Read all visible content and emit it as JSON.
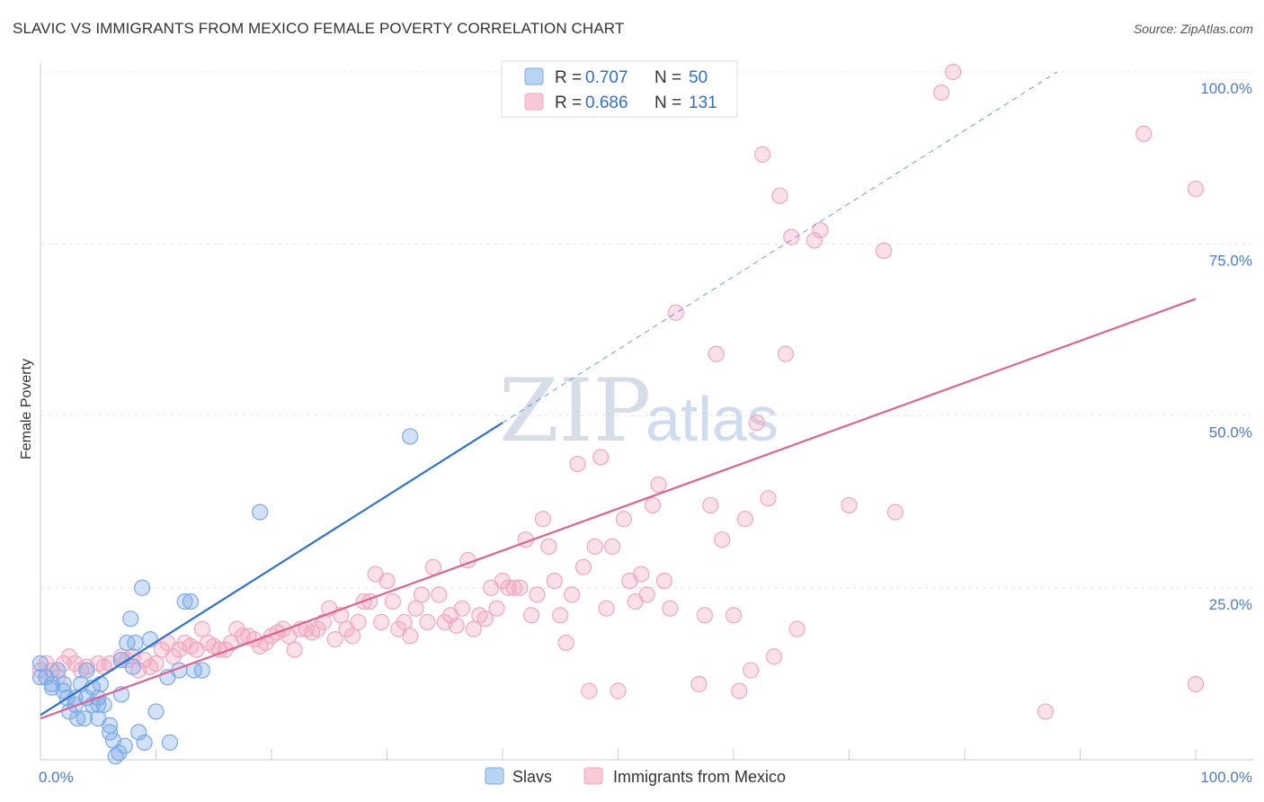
{
  "title": "SLAVIC VS IMMIGRANTS FROM MEXICO FEMALE POVERTY CORRELATION CHART",
  "source": "Source: ZipAtlas.com",
  "watermark": {
    "zip": "ZIP",
    "atlas": "atlas"
  },
  "legend": {
    "rows": [
      {
        "r_label": "R = ",
        "r_value": "0.707",
        "n_label": "N = ",
        "n_value": "50"
      },
      {
        "r_label": "R = ",
        "r_value": "0.686",
        "n_label": "N = ",
        "n_value": "131"
      }
    ]
  },
  "chart_data": {
    "type": "scatter",
    "title": "SLAVIC VS IMMIGRANTS FROM MEXICO FEMALE POVERTY CORRELATION CHART",
    "ylabel": "Female Poverty",
    "xlabel": "",
    "xlim": [
      0,
      100
    ],
    "ylim": [
      0,
      100
    ],
    "x_tick_labels": [
      {
        "value": 0,
        "label": "0.0%"
      },
      {
        "value": 100,
        "label": "100.0%"
      }
    ],
    "y_tick_labels": [
      {
        "value": 25,
        "label": "25.0%"
      },
      {
        "value": 50,
        "label": "50.0%"
      },
      {
        "value": 75,
        "label": "75.0%"
      },
      {
        "value": 100,
        "label": "100.0%"
      }
    ],
    "grid": true,
    "colors": {
      "slavs": "#7aaae8",
      "mexico": "#f2a7bf",
      "slavs_line": "#2f73d0",
      "mexico_line": "#e0628e"
    },
    "series": [
      {
        "name": "Slavs",
        "r": 0.707,
        "n": 50,
        "trend": {
          "x0": 0,
          "y0": 6.5,
          "x1": 40,
          "y1": 49,
          "dash_to_x": 88
        },
        "points": [
          [
            0,
            14
          ],
          [
            0,
            12
          ],
          [
            0.5,
            12
          ],
          [
            1,
            11
          ],
          [
            1,
            10.5
          ],
          [
            1.5,
            13
          ],
          [
            2,
            11
          ],
          [
            2,
            10
          ],
          [
            2.3,
            9
          ],
          [
            2.5,
            7
          ],
          [
            3,
            9
          ],
          [
            3,
            8
          ],
          [
            3.2,
            6
          ],
          [
            3.5,
            11
          ],
          [
            3.8,
            6
          ],
          [
            4,
            13
          ],
          [
            4,
            9
          ],
          [
            4.5,
            10.5
          ],
          [
            4.5,
            8
          ],
          [
            5,
            8
          ],
          [
            5,
            9
          ],
          [
            5,
            6
          ],
          [
            5.2,
            11
          ],
          [
            5.5,
            8
          ],
          [
            6,
            4
          ],
          [
            6,
            5
          ],
          [
            6.3,
            2.8
          ],
          [
            6.5,
            0.5
          ],
          [
            6.8,
            1
          ],
          [
            7,
            9.5
          ],
          [
            7,
            14.5
          ],
          [
            7.3,
            2
          ],
          [
            7.5,
            17
          ],
          [
            7.8,
            20.5
          ],
          [
            8,
            13.5
          ],
          [
            8.2,
            17
          ],
          [
            8.5,
            4
          ],
          [
            8.8,
            25
          ],
          [
            9,
            2.5
          ],
          [
            9.5,
            17.5
          ],
          [
            10,
            7
          ],
          [
            11,
            12
          ],
          [
            11.2,
            2.5
          ],
          [
            12,
            13
          ],
          [
            12.5,
            23
          ],
          [
            13,
            23
          ],
          [
            13.3,
            13
          ],
          [
            14,
            13
          ],
          [
            19,
            36
          ],
          [
            32,
            47
          ]
        ]
      },
      {
        "name": "Immigrants from Mexico",
        "r": 0.686,
        "n": 131,
        "trend": {
          "x0": 0,
          "y0": 6,
          "x1": 100,
          "y1": 67
        },
        "points": [
          [
            0,
            13
          ],
          [
            0.5,
            14
          ],
          [
            1,
            13
          ],
          [
            1.5,
            12
          ],
          [
            2,
            14
          ],
          [
            2.5,
            15
          ],
          [
            3,
            14
          ],
          [
            3.5,
            13
          ],
          [
            4,
            13.5
          ],
          [
            5,
            14
          ],
          [
            5.5,
            13.5
          ],
          [
            6,
            14
          ],
          [
            7,
            15
          ],
          [
            7.5,
            14.5
          ],
          [
            8,
            15
          ],
          [
            8.5,
            13
          ],
          [
            9,
            14.5
          ],
          [
            9.5,
            13.5
          ],
          [
            10,
            14
          ],
          [
            10.5,
            16
          ],
          [
            11,
            17
          ],
          [
            11.5,
            15
          ],
          [
            12,
            16
          ],
          [
            12.5,
            17
          ],
          [
            13,
            16.5
          ],
          [
            13.5,
            16
          ],
          [
            14,
            19
          ],
          [
            14.5,
            17
          ],
          [
            15,
            16.5
          ],
          [
            15.5,
            16
          ],
          [
            16,
            16
          ],
          [
            16.5,
            17
          ],
          [
            17,
            19
          ],
          [
            17.5,
            18
          ],
          [
            18,
            18
          ],
          [
            18.5,
            17.5
          ],
          [
            19,
            16.5
          ],
          [
            19.5,
            17
          ],
          [
            20,
            18
          ],
          [
            20.5,
            18.5
          ],
          [
            21,
            19
          ],
          [
            21.5,
            18
          ],
          [
            22,
            16
          ],
          [
            22.5,
            19
          ],
          [
            23,
            19
          ],
          [
            23.5,
            18.5
          ],
          [
            24,
            19
          ],
          [
            24.5,
            20
          ],
          [
            25,
            22
          ],
          [
            25.5,
            17.5
          ],
          [
            26,
            21
          ],
          [
            26.5,
            19
          ],
          [
            27,
            18
          ],
          [
            27.5,
            20
          ],
          [
            28,
            23
          ],
          [
            28.5,
            23
          ],
          [
            29,
            27
          ],
          [
            29.5,
            20
          ],
          [
            30,
            26
          ],
          [
            30.5,
            23
          ],
          [
            31,
            19
          ],
          [
            31.5,
            20
          ],
          [
            32,
            18
          ],
          [
            32.5,
            22
          ],
          [
            33,
            24
          ],
          [
            33.5,
            20
          ],
          [
            34,
            28
          ],
          [
            34.5,
            24
          ],
          [
            35,
            20
          ],
          [
            35.5,
            21
          ],
          [
            36,
            19.5
          ],
          [
            36.5,
            22
          ],
          [
            37,
            29
          ],
          [
            37.5,
            19
          ],
          [
            38,
            21
          ],
          [
            38.5,
            20.5
          ],
          [
            39,
            25
          ],
          [
            39.5,
            22
          ],
          [
            40,
            26
          ],
          [
            40.5,
            25
          ],
          [
            41,
            25
          ],
          [
            41.5,
            25
          ],
          [
            42,
            32
          ],
          [
            42.5,
            21
          ],
          [
            43,
            24
          ],
          [
            43.5,
            35
          ],
          [
            44,
            31
          ],
          [
            44.5,
            26
          ],
          [
            45,
            21
          ],
          [
            45.5,
            17
          ],
          [
            46,
            24
          ],
          [
            46.5,
            43
          ],
          [
            47,
            28
          ],
          [
            47.5,
            10
          ],
          [
            48,
            31
          ],
          [
            48.5,
            44
          ],
          [
            49,
            22
          ],
          [
            49.5,
            31
          ],
          [
            50,
            10
          ],
          [
            50.5,
            35
          ],
          [
            51,
            26
          ],
          [
            51.5,
            23
          ],
          [
            52,
            27
          ],
          [
            52.5,
            24
          ],
          [
            53,
            37
          ],
          [
            53.5,
            40
          ],
          [
            54,
            26
          ],
          [
            54.5,
            22
          ],
          [
            55,
            65
          ],
          [
            57,
            11
          ],
          [
            57.5,
            21
          ],
          [
            58,
            37
          ],
          [
            58.5,
            59
          ],
          [
            59,
            32
          ],
          [
            60,
            21
          ],
          [
            60.5,
            10
          ],
          [
            61,
            35
          ],
          [
            61.5,
            13
          ],
          [
            62,
            49
          ],
          [
            62.5,
            88
          ],
          [
            63,
            38
          ],
          [
            63.5,
            15
          ],
          [
            64,
            82
          ],
          [
            64.5,
            59
          ],
          [
            65,
            76
          ],
          [
            65.5,
            19
          ],
          [
            67,
            75.5
          ],
          [
            67.5,
            77
          ],
          [
            70,
            37
          ],
          [
            73,
            74
          ],
          [
            74,
            36
          ],
          [
            78,
            97
          ],
          [
            79,
            100
          ],
          [
            87,
            7
          ],
          [
            95.5,
            91
          ],
          [
            100,
            83
          ],
          [
            100,
            11
          ]
        ]
      }
    ]
  }
}
